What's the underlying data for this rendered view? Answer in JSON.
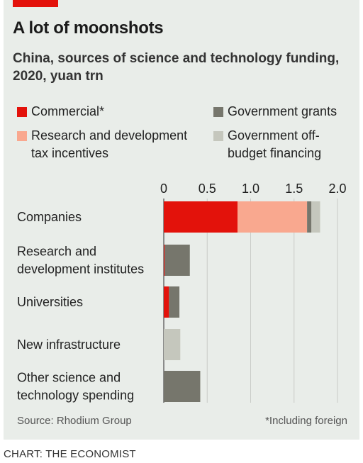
{
  "header": {
    "title": "A lot of moonshots",
    "subtitle": "China, sources of science and technology funding, 2020, yuan trn"
  },
  "legend": [
    {
      "key": "commercial",
      "label": "Commercial*",
      "color": "#e3120b"
    },
    {
      "key": "rd_tax",
      "label": "Research and development tax incentives",
      "color": "#f9a88f"
    },
    {
      "key": "gov_grants",
      "label": "Government grants",
      "color": "#76766c"
    },
    {
      "key": "gov_offbudget",
      "label": "Government off-budget financing",
      "color": "#c5c7bd"
    }
  ],
  "chart_data": {
    "type": "bar",
    "orientation": "horizontal",
    "stacked": true,
    "title": "A lot of moonshots",
    "subtitle": "China, sources of science and technology funding, 2020, yuan trn",
    "categories": [
      "Companies",
      "Research and development institutes",
      "Universities",
      "New infrastructure",
      "Other science and technology spending"
    ],
    "series": [
      {
        "name": "Commercial*",
        "color": "#e3120b",
        "values": [
          0.85,
          0.01,
          0.06,
          0.0,
          0.0
        ]
      },
      {
        "name": "Research and development tax incentives",
        "color": "#f9a88f",
        "values": [
          0.8,
          0.0,
          0.0,
          0.0,
          0.0
        ]
      },
      {
        "name": "Government grants",
        "color": "#76766c",
        "values": [
          0.05,
          0.29,
          0.12,
          0.0,
          0.42
        ]
      },
      {
        "name": "Government off-budget financing",
        "color": "#c5c7bd",
        "values": [
          0.1,
          0.0,
          0.0,
          0.19,
          0.0
        ]
      }
    ],
    "xticks": [
      "0",
      "0.5",
      "1.0",
      "1.5",
      "2.0"
    ],
    "xtick_values": [
      0,
      0.5,
      1.0,
      1.5,
      2.0
    ],
    "xlim": [
      0,
      2.0
    ],
    "grid": true
  },
  "footer": {
    "source": "Source: Rhodium Group",
    "note": "*Including foreign"
  },
  "credit": "CHART: THE ECONOMIST"
}
